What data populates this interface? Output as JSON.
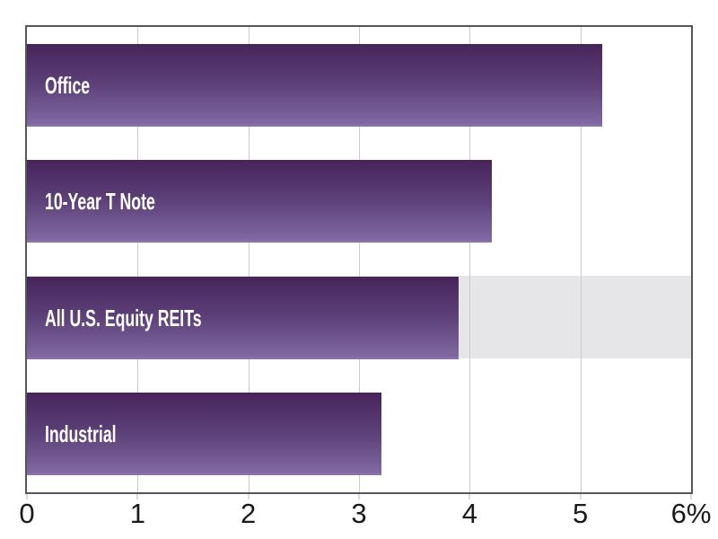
{
  "chart_data": {
    "type": "bar",
    "orientation": "horizontal",
    "title": "",
    "categories": [
      "Office",
      "10-Year T Note",
      "All U.S. Equity REITs",
      "Industrial"
    ],
    "values": [
      5.2,
      4.2,
      3.9,
      3.2
    ],
    "xlim": [
      0,
      6
    ],
    "x_tick_labels": [
      "0",
      "1",
      "2",
      "3",
      "4",
      "5",
      "6%"
    ],
    "unit": "percent",
    "grid": true,
    "legend": false,
    "highlighted_category": "All U.S. Equity REITs",
    "colors": {
      "bar_gradient": [
        "#46245a",
        "#5e4179",
        "#8068a2",
        "#8e78ab"
      ],
      "highlight_band": "#e6e6e8",
      "gridline": "#cbcbce",
      "axis_border": "#55565a",
      "tick_text": "#1a1a1a",
      "bar_label_text": "#ffffff"
    }
  }
}
